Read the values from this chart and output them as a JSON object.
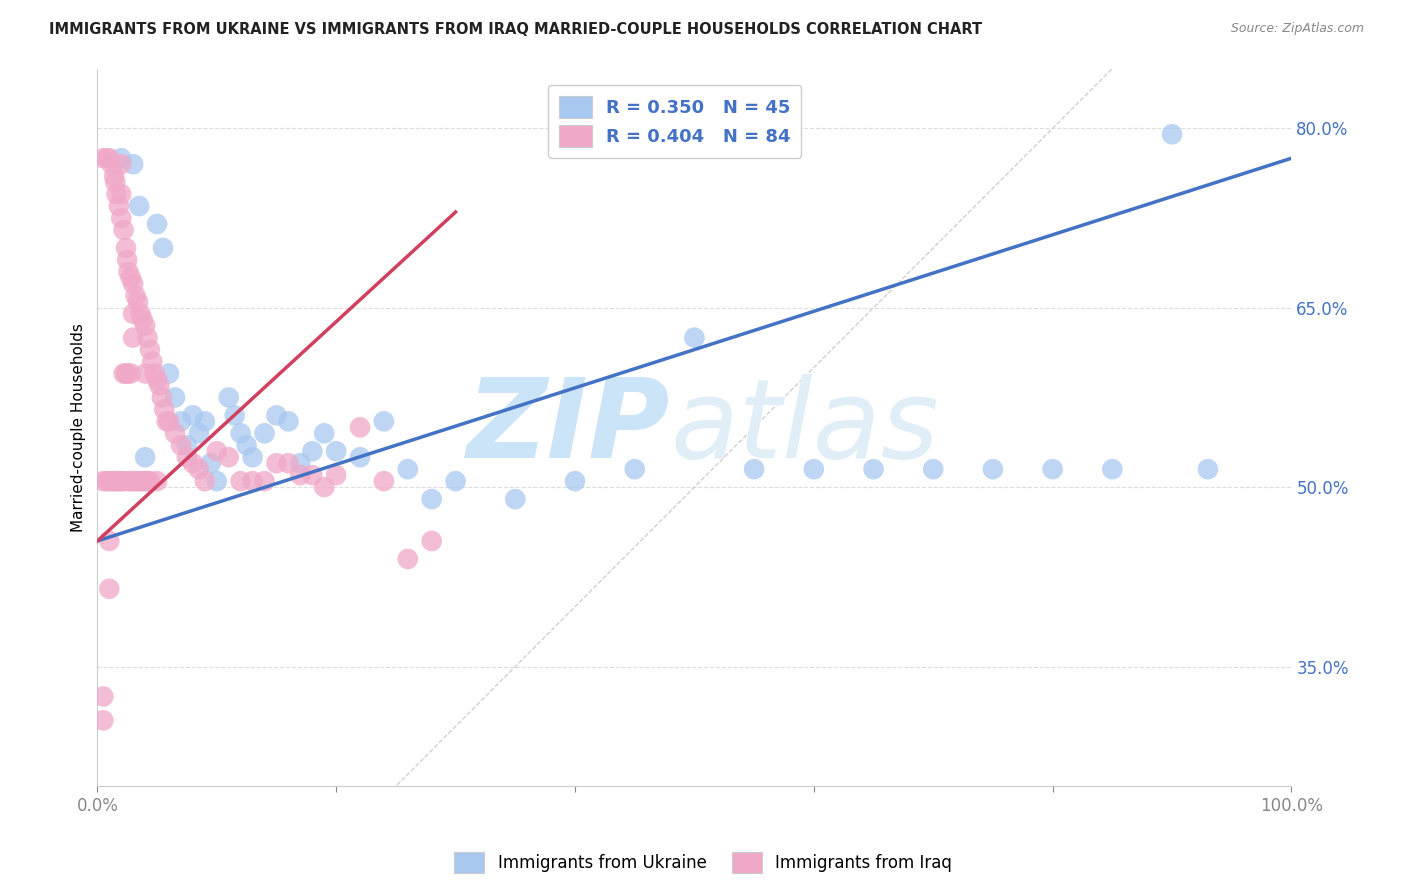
{
  "title": "IMMIGRANTS FROM UKRAINE VS IMMIGRANTS FROM IRAQ MARRIED-COUPLE HOUSEHOLDS CORRELATION CHART",
  "source": "Source: ZipAtlas.com",
  "ylabel": "Married-couple Households",
  "xlabel": "",
  "xlim": [
    0.0,
    1.0
  ],
  "ylim": [
    0.25,
    0.85
  ],
  "yticks": [
    0.35,
    0.5,
    0.65,
    0.8
  ],
  "ytick_labels": [
    "35.0%",
    "50.0%",
    "65.0%",
    "80.0%"
  ],
  "xtick_labels": [
    "0.0%",
    "",
    "",
    "",
    "",
    "100.0%"
  ],
  "ukraine_R": 0.35,
  "ukraine_N": 45,
  "iraq_R": 0.404,
  "iraq_N": 84,
  "ukraine_color": "#a8c8f0",
  "iraq_color": "#f0a8c8",
  "ukraine_line_color": "#4472c4",
  "iraq_line_color": "#d04060",
  "diagonal_color": "#cccccc",
  "background_color": "#ffffff",
  "grid_color": "#dddddd",
  "watermark_zip": "ZIP",
  "watermark_atlas": "atlas",
  "watermark_color": "#cce4f7",
  "ukraine_line_x0": 0.0,
  "ukraine_line_y0": 0.455,
  "ukraine_line_x1": 1.0,
  "ukraine_line_y1": 0.775,
  "iraq_line_x0": 0.0,
  "iraq_line_y0": 0.455,
  "iraq_line_x1": 0.3,
  "iraq_line_y1": 0.73,
  "ukraine_x": [
    0.02,
    0.03,
    0.035,
    0.04,
    0.05,
    0.055,
    0.06,
    0.065,
    0.07,
    0.075,
    0.08,
    0.085,
    0.09,
    0.095,
    0.1,
    0.11,
    0.115,
    0.12,
    0.125,
    0.13,
    0.14,
    0.15,
    0.16,
    0.17,
    0.18,
    0.19,
    0.2,
    0.22,
    0.24,
    0.26,
    0.28,
    0.3,
    0.35,
    0.4,
    0.45,
    0.5,
    0.55,
    0.6,
    0.65,
    0.7,
    0.75,
    0.8,
    0.85,
    0.9,
    0.93
  ],
  "ukraine_y": [
    0.775,
    0.77,
    0.735,
    0.525,
    0.72,
    0.7,
    0.595,
    0.575,
    0.555,
    0.535,
    0.56,
    0.545,
    0.555,
    0.52,
    0.505,
    0.575,
    0.56,
    0.545,
    0.535,
    0.525,
    0.545,
    0.56,
    0.555,
    0.52,
    0.53,
    0.545,
    0.53,
    0.525,
    0.555,
    0.515,
    0.49,
    0.505,
    0.49,
    0.505,
    0.515,
    0.625,
    0.515,
    0.515,
    0.515,
    0.515,
    0.515,
    0.515,
    0.515,
    0.795,
    0.515
  ],
  "iraq_x": [
    0.005,
    0.005,
    0.008,
    0.008,
    0.01,
    0.01,
    0.012,
    0.012,
    0.014,
    0.015,
    0.015,
    0.016,
    0.016,
    0.018,
    0.018,
    0.02,
    0.02,
    0.02,
    0.02,
    0.022,
    0.022,
    0.022,
    0.024,
    0.024,
    0.025,
    0.025,
    0.026,
    0.026,
    0.028,
    0.028,
    0.028,
    0.03,
    0.03,
    0.03,
    0.03,
    0.032,
    0.032,
    0.034,
    0.034,
    0.036,
    0.036,
    0.038,
    0.038,
    0.04,
    0.04,
    0.04,
    0.042,
    0.042,
    0.044,
    0.044,
    0.046,
    0.048,
    0.05,
    0.05,
    0.052,
    0.054,
    0.056,
    0.058,
    0.06,
    0.065,
    0.07,
    0.075,
    0.08,
    0.085,
    0.09,
    0.1,
    0.11,
    0.12,
    0.13,
    0.14,
    0.15,
    0.16,
    0.17,
    0.18,
    0.19,
    0.2,
    0.22,
    0.24,
    0.26,
    0.28,
    0.005,
    0.005,
    0.01,
    0.01
  ],
  "iraq_y": [
    0.775,
    0.505,
    0.775,
    0.505,
    0.775,
    0.505,
    0.77,
    0.505,
    0.76,
    0.755,
    0.505,
    0.745,
    0.505,
    0.735,
    0.505,
    0.77,
    0.745,
    0.725,
    0.505,
    0.715,
    0.595,
    0.505,
    0.7,
    0.595,
    0.69,
    0.595,
    0.68,
    0.505,
    0.675,
    0.595,
    0.505,
    0.67,
    0.645,
    0.625,
    0.505,
    0.66,
    0.505,
    0.655,
    0.505,
    0.645,
    0.505,
    0.64,
    0.505,
    0.635,
    0.595,
    0.505,
    0.625,
    0.505,
    0.615,
    0.505,
    0.605,
    0.595,
    0.59,
    0.505,
    0.585,
    0.575,
    0.565,
    0.555,
    0.555,
    0.545,
    0.535,
    0.525,
    0.52,
    0.515,
    0.505,
    0.53,
    0.525,
    0.505,
    0.505,
    0.505,
    0.52,
    0.52,
    0.51,
    0.51,
    0.5,
    0.51,
    0.55,
    0.505,
    0.44,
    0.455,
    0.325,
    0.305,
    0.455,
    0.415
  ]
}
